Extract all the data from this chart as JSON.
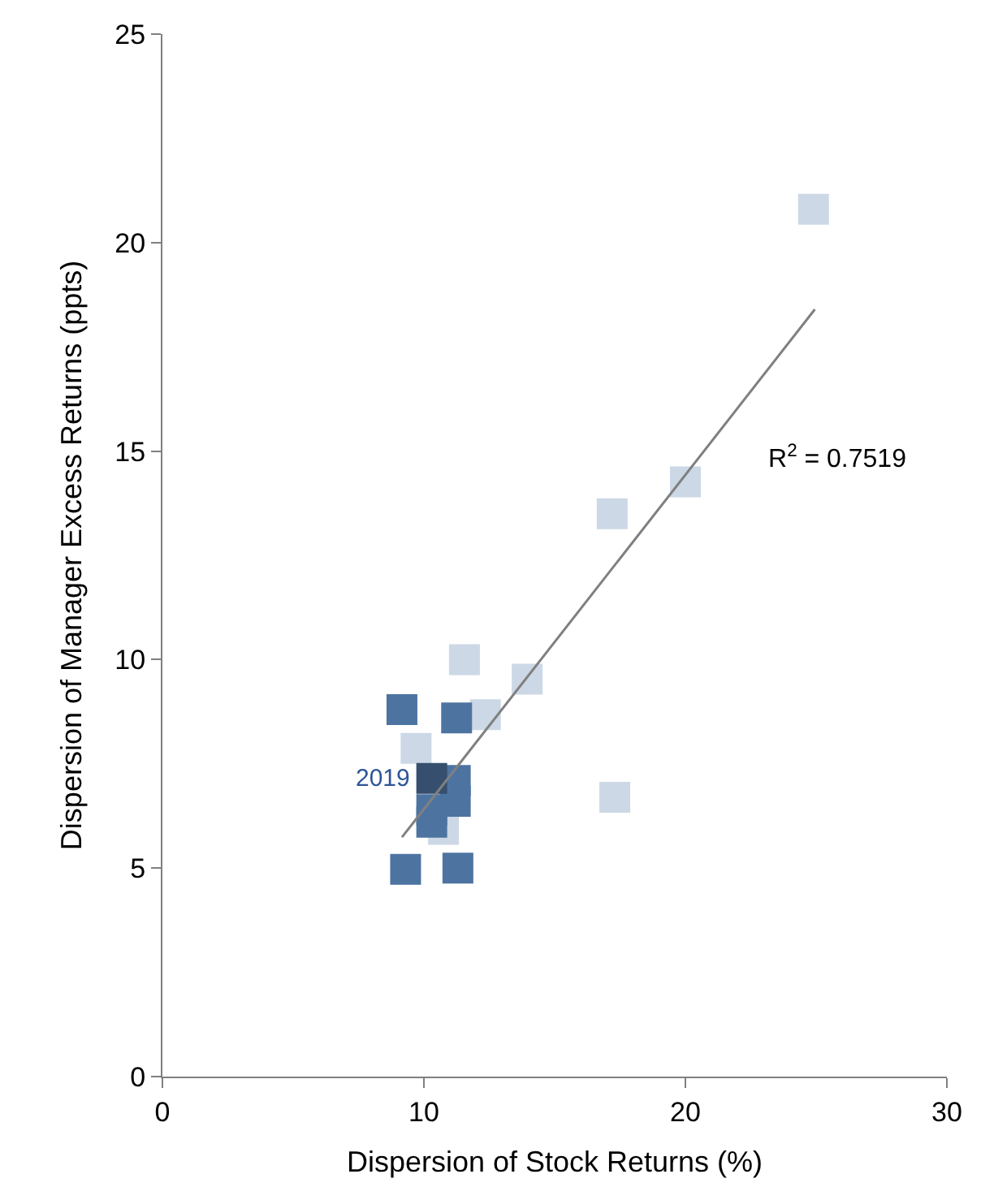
{
  "chart_data": {
    "type": "scatter",
    "xlabel": "Dispersion of Stock Returns (%)",
    "ylabel": "Dispersion of Manager Excess Returns (ppts)",
    "xlim": [
      0,
      30
    ],
    "xticks": [
      0,
      10,
      20,
      30
    ],
    "ylim": [
      0,
      25
    ],
    "yticks": [
      0,
      5,
      10,
      15,
      20,
      25
    ],
    "legend": false,
    "marker": "square",
    "series": [
      {
        "color": "#ccd8e6",
        "x": [
          11.55,
          13.95,
          12.35,
          9.7,
          10.75,
          17.2,
          20.0,
          17.3,
          24.9
        ],
        "values": [
          10.0,
          9.53,
          8.68,
          7.87,
          5.93,
          13.5,
          14.26,
          6.7,
          20.8
        ]
      },
      {
        "color": "#4d74a1",
        "x": [
          9.16,
          11.25,
          11.2,
          11.2,
          10.3,
          10.3,
          9.3,
          11.3
        ],
        "values": [
          8.8,
          8.6,
          7.1,
          6.6,
          6.4,
          6.1,
          4.97,
          5.0
        ]
      },
      {
        "color": "#364f6e",
        "x": [
          10.3
        ],
        "values": [
          7.15
        ]
      },
      {
        "type": "line",
        "color": "#808080",
        "line_style": "solid",
        "marker": "none",
        "x": [
          9.16,
          24.95
        ],
        "values": [
          5.74,
          18.4
        ]
      }
    ],
    "annotations": [
      {
        "text": "2019",
        "x": 10.3,
        "y": 7.15
      },
      "R$^{2}$ = 0.7519"
    ]
  }
}
